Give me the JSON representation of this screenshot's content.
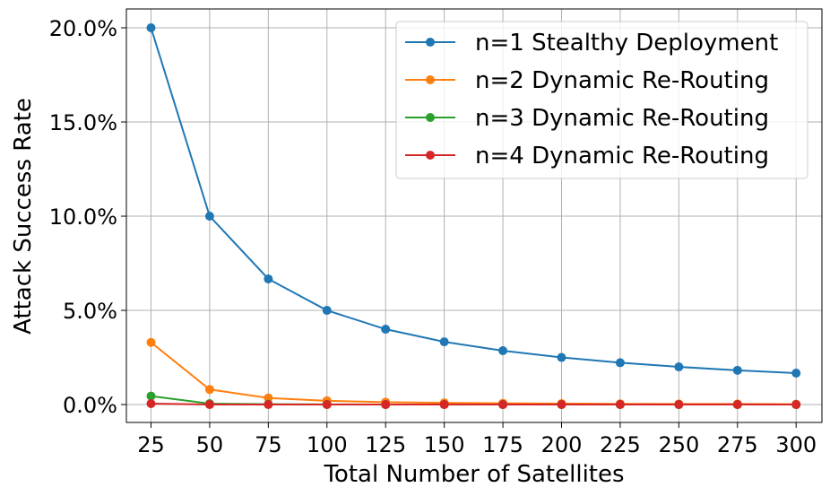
{
  "chart_data": {
    "type": "line",
    "title": "",
    "xlabel": "Total Number of Satellites",
    "ylabel": "Attack Success Rate",
    "x": [
      25,
      50,
      75,
      100,
      125,
      150,
      175,
      200,
      225,
      250,
      275,
      300
    ],
    "x_tick_labels": [
      "25",
      "50",
      "75",
      "100",
      "125",
      "150",
      "175",
      "200",
      "225",
      "250",
      "275",
      "300"
    ],
    "xlim": [
      14.5,
      311
    ],
    "y_ticks": [
      0,
      5,
      10,
      15,
      20
    ],
    "y_tick_labels": [
      "0.0%",
      "5.0%",
      "10.0%",
      "15.0%",
      "20.0%"
    ],
    "ylim": [
      -0.95,
      21.0
    ],
    "grid": true,
    "legend": "top-right",
    "series": [
      {
        "name": "n=1 Stealthy Deployment",
        "color": "#1f77b4",
        "values": [
          20.0,
          10.0,
          6.67,
          5.0,
          4.0,
          3.33,
          2.86,
          2.5,
          2.22,
          2.0,
          1.82,
          1.67
        ]
      },
      {
        "name": "n=2 Dynamic Re-Routing",
        "color": "#ff7f0e",
        "values": [
          3.3,
          0.8,
          0.35,
          0.2,
          0.13,
          0.09,
          0.07,
          0.05,
          0.04,
          0.03,
          0.03,
          0.02
        ]
      },
      {
        "name": "n=3 Dynamic Re-Routing",
        "color": "#2ca02c",
        "values": [
          0.45,
          0.05,
          0.02,
          0.01,
          0.0,
          0.0,
          0.0,
          0.0,
          0.0,
          0.0,
          0.0,
          0.0
        ]
      },
      {
        "name": "n=4 Dynamic Re-Routing",
        "color": "#d62728",
        "values": [
          0.05,
          0.0,
          0.0,
          0.0,
          0.0,
          0.0,
          0.0,
          0.0,
          0.0,
          0.0,
          0.0,
          0.0
        ]
      }
    ]
  }
}
